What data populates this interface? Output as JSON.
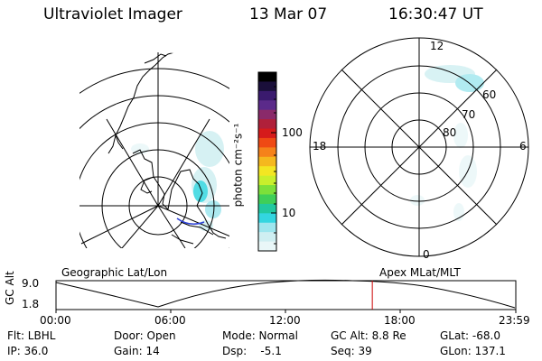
{
  "header": {
    "instrument": "Ultraviolet Imager",
    "date": "13 Mar 07",
    "time": "16:30:47 UT"
  },
  "colorbar": {
    "unit_label": "photon cm⁻²s⁻¹",
    "scale": "log",
    "tick_labels": [
      "100",
      "10"
    ],
    "colors": [
      "#000000",
      "#1a0f3a",
      "#3a1a6e",
      "#5b2a8a",
      "#8a2a6a",
      "#b0203a",
      "#d61b1b",
      "#ef4a14",
      "#f5821a",
      "#f5b81e",
      "#f3e622",
      "#c9ef2c",
      "#7de03a",
      "#3fcf58",
      "#22c9a0",
      "#33d6e0",
      "#9ee6ee",
      "#cfeff2",
      "#e9f7f8"
    ]
  },
  "geo_map": {
    "label": "Geographic Lat/Lon"
  },
  "polar_map": {
    "label": "Apex MLat/MLT",
    "mlt_labels": {
      "top": "12",
      "left": "18",
      "right": "6",
      "bottom": "0"
    },
    "mlat_labels": [
      "60",
      "70",
      "80"
    ]
  },
  "timeline": {
    "y_axis_label": "GC Alt",
    "y_ticks": [
      "9.0",
      "1.8"
    ],
    "x_ticks": [
      "00:00",
      "06:00",
      "12:00",
      "18:00",
      "23:59"
    ],
    "current_marker_color": "#cc0000",
    "current_time_hours": 16.51
  },
  "info": {
    "filter": "Flt: LBHL",
    "door": "Door: Open",
    "mode": "Mode: Normal",
    "gc_alt": "GC Alt: 8.8 Re",
    "glat": "GLat: -68.0",
    "ip": "IP: 36.0",
    "gain": "Gain: 14",
    "dsp": "Dsp:    -5.1",
    "seq": "Seq: 39",
    "glon": "GLon: 137.1"
  }
}
